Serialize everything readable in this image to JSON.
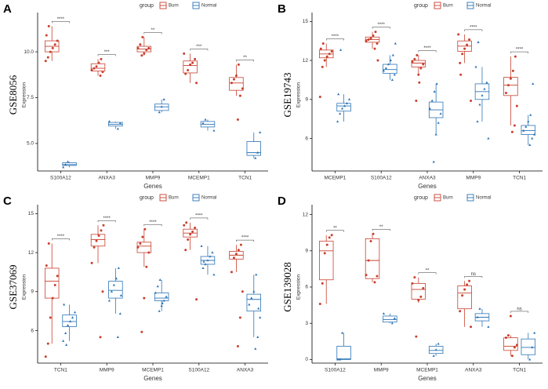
{
  "chart_data": [
    {
      "type": "box",
      "label": "A",
      "title": "GSE8056",
      "ylabel": "Expression",
      "xlabel": "Genes",
      "legend_title": "group",
      "categories": [
        "S100A12",
        "ANXA3",
        "MMP9",
        "MCEMP1",
        "TCN1"
      ],
      "annotations": [
        "****",
        "***",
        "**",
        "***",
        "**"
      ],
      "ylim": [
        3.5,
        11.8
      ],
      "yticks": [
        {
          "value": 5,
          "label": "5.0"
        },
        {
          "value": 7.5,
          "label": "7.5"
        },
        {
          "value": 10,
          "label": "10.0"
        }
      ],
      "series": [
        {
          "name": "Burn",
          "color": "#c8402f",
          "boxes": [
            [
              9.5,
              10.0,
              10.3,
              10.6,
              11.4
            ],
            [
              8.7,
              8.95,
              9.1,
              9.35,
              9.6
            ],
            [
              9.8,
              10.0,
              10.15,
              10.3,
              10.8
            ],
            [
              8.3,
              8.85,
              9.25,
              9.5,
              9.9
            ],
            [
              7.6,
              7.9,
              8.3,
              8.6,
              9.3
            ]
          ],
          "points": [
            [
              9.5,
              9.7,
              10.0,
              10.2,
              10.4,
              10.6,
              10.9,
              11.4
            ],
            [
              8.7,
              8.9,
              9.0,
              9.1,
              9.2,
              9.4,
              9.6
            ],
            [
              9.8,
              9.9,
              10.1,
              10.2,
              10.2,
              10.4,
              10.8
            ],
            [
              8.3,
              8.8,
              9.0,
              9.3,
              9.4,
              9.6,
              9.9
            ],
            [
              6.3,
              7.6,
              8.0,
              8.3,
              8.5,
              8.7,
              9.3
            ]
          ]
        },
        {
          "name": "Normal",
          "color": "#2e75b6",
          "boxes": [
            [
              3.7,
              3.8,
              3.85,
              3.95,
              4.0
            ],
            [
              5.8,
              5.95,
              6.05,
              6.15,
              6.2
            ],
            [
              6.7,
              6.8,
              7.0,
              7.15,
              7.4
            ],
            [
              5.7,
              5.9,
              6.05,
              6.2,
              6.3
            ],
            [
              4.2,
              4.35,
              4.5,
              5.1,
              5.6
            ]
          ],
          "points": [
            [
              3.7,
              3.85,
              4.0
            ],
            [
              5.8,
              6.1,
              6.2
            ],
            [
              6.7,
              7.0,
              7.4
            ],
            [
              5.7,
              6.1,
              6.3
            ],
            [
              4.2,
              4.5,
              5.6
            ]
          ]
        }
      ]
    },
    {
      "type": "box",
      "label": "B",
      "title": "GSE19743",
      "ylabel": "Expression",
      "xlabel": "Genes",
      "legend_title": "group",
      "categories": [
        "MCEMP1",
        "S100A12",
        "ANXA3",
        "MMP9",
        "TCN1"
      ],
      "annotations": [
        "****",
        "****",
        "****",
        "****",
        "****"
      ],
      "ylim": [
        3.5,
        15.2
      ],
      "yticks": [
        6,
        9,
        12,
        15
      ],
      "series": [
        {
          "name": "Burn",
          "color": "#c8402f",
          "boxes": [
            [
              11.5,
              12.2,
              12.5,
              12.8,
              13.3
            ],
            [
              12.9,
              13.4,
              13.6,
              13.8,
              14.2
            ],
            [
              10.9,
              11.5,
              11.8,
              12.0,
              12.4
            ],
            [
              11.8,
              12.7,
              13.1,
              13.5,
              14.0
            ],
            [
              7.0,
              9.3,
              10.1,
              10.7,
              12.3
            ]
          ],
          "points": [
            [
              9.2,
              11.5,
              12.0,
              12.3,
              12.5,
              12.7,
              12.9,
              13.3
            ],
            [
              12.9,
              13.3,
              13.5,
              13.6,
              13.7,
              13.9,
              14.2,
              12.0
            ],
            [
              8.9,
              10.9,
              11.4,
              11.7,
              11.9,
              12.1,
              12.4,
              10.3
            ],
            [
              8.9,
              11.8,
              12.5,
              12.9,
              13.2,
              13.6,
              14.0,
              10.9
            ],
            [
              6.5,
              7.0,
              8.5,
              9.5,
              10.1,
              10.6,
              11.2,
              12.3
            ]
          ]
        },
        {
          "name": "Normal",
          "color": "#2e75b6",
          "boxes": [
            [
              7.3,
              8.1,
              8.5,
              8.7,
              9.4
            ],
            [
              10.5,
              11.0,
              11.3,
              11.7,
              12.4
            ],
            [
              6.3,
              7.6,
              8.2,
              8.8,
              10.2
            ],
            [
              7.3,
              9.0,
              9.6,
              10.2,
              11.5
            ],
            [
              5.5,
              6.3,
              6.6,
              7.0,
              7.8
            ]
          ],
          "points": [
            [
              7.3,
              7.9,
              8.3,
              8.5,
              8.7,
              9.0,
              9.4,
              12.8
            ],
            [
              10.5,
              10.9,
              11.2,
              11.4,
              11.7,
              12.0,
              12.4,
              13.3
            ],
            [
              4.2,
              6.3,
              7.2,
              7.9,
              8.3,
              8.9,
              9.6,
              10.2
            ],
            [
              6.0,
              7.3,
              8.6,
              9.3,
              9.8,
              10.3,
              11.5,
              13.4
            ],
            [
              5.5,
              6.0,
              6.3,
              6.6,
              6.9,
              7.3,
              7.8,
              10.2
            ]
          ]
        }
      ]
    },
    {
      "type": "box",
      "label": "C",
      "title": "GSE37069",
      "ylabel": "Expression",
      "xlabel": "Genes",
      "legend_title": "group",
      "categories": [
        "TCN1",
        "MMP9",
        "MCEMP1",
        "S100A12",
        "ANXA3"
      ],
      "annotations": [
        "****",
        "****",
        "****",
        "****",
        "****"
      ],
      "ylim": [
        3.5,
        15.2
      ],
      "yticks": [
        6,
        9,
        12,
        15
      ],
      "series": [
        {
          "name": "Burn",
          "color": "#c8402f",
          "boxes": [
            [
              5.0,
              8.5,
              9.8,
              10.8,
              12.7
            ],
            [
              11.2,
              12.5,
              13.0,
              13.4,
              14.1
            ],
            [
              10.9,
              12.0,
              12.5,
              12.8,
              13.8
            ],
            [
              12.2,
              13.2,
              13.5,
              13.8,
              14.3
            ],
            [
              10.5,
              11.5,
              11.8,
              12.1,
              12.6
            ]
          ],
          "points": [
            [
              4.0,
              5.0,
              7.0,
              8.5,
              9.5,
              10.2,
              11.0,
              12.7
            ],
            [
              5.5,
              9.0,
              11.2,
              12.4,
              12.9,
              13.3,
              13.7,
              14.1
            ],
            [
              5.9,
              8.5,
              10.9,
              12.0,
              12.4,
              12.7,
              13.2,
              13.8
            ],
            [
              8.4,
              12.2,
              13.0,
              13.4,
              13.6,
              13.9,
              14.1,
              14.3
            ],
            [
              4.8,
              7.0,
              9.0,
              10.5,
              11.6,
              11.9,
              12.2,
              12.6
            ]
          ]
        },
        {
          "name": "Normal",
          "color": "#2e75b6",
          "boxes": [
            [
              5.2,
              6.3,
              6.7,
              7.2,
              8.0
            ],
            [
              7.3,
              8.5,
              9.1,
              9.8,
              10.8
            ],
            [
              7.5,
              8.3,
              8.5,
              8.9,
              9.9
            ],
            [
              10.3,
              11.1,
              11.4,
              11.7,
              12.5
            ],
            [
              5.5,
              7.5,
              8.4,
              8.8,
              10.3
            ]
          ],
          "points": [
            [
              5.2,
              5.8,
              6.4,
              6.7,
              7.0,
              7.4,
              8.0,
              4.9
            ],
            [
              5.5,
              7.3,
              8.3,
              9.0,
              9.5,
              10.0,
              10.8,
              8.7
            ],
            [
              7.5,
              7.9,
              8.3,
              8.6,
              8.9,
              9.4,
              9.9,
              8.1
            ],
            [
              10.3,
              10.8,
              11.1,
              11.4,
              11.7,
              12.0,
              12.5,
              11.3
            ],
            [
              4.6,
              5.5,
              7.0,
              8.0,
              8.5,
              9.0,
              10.3,
              7.7
            ]
          ]
        }
      ]
    },
    {
      "type": "box",
      "label": "D",
      "title": "GSE139028",
      "ylabel": "Expression",
      "xlabel": "Genes",
      "legend_title": "group",
      "categories": [
        "S100A12",
        "MMP9",
        "MCEMP1",
        "ANXA3",
        "TCN1"
      ],
      "annotations": [
        "**",
        "**",
        "**",
        "ns",
        "ns"
      ],
      "ylim": [
        -0.3,
        12.3
      ],
      "yticks": [
        0,
        3,
        6,
        9,
        12
      ],
      "series": [
        {
          "name": "Burn",
          "color": "#c8402f",
          "boxes": [
            [
              4.6,
              6.6,
              9.0,
              9.8,
              10.3
            ],
            [
              6.4,
              6.7,
              8.2,
              10.0,
              10.4
            ],
            [
              4.7,
              5.0,
              5.8,
              6.3,
              6.8
            ],
            [
              2.7,
              4.2,
              5.5,
              6.1,
              6.5
            ],
            [
              0.3,
              0.75,
              1.1,
              1.8,
              2.0
            ]
          ],
          "points": [
            [
              4.6,
              6.3,
              8.8,
              9.5,
              10.1,
              10.3
            ],
            [
              6.4,
              6.9,
              7.0,
              8.2,
              9.8,
              10.4
            ],
            [
              1.9,
              4.9,
              5.2,
              5.9,
              6.3,
              6.8
            ],
            [
              2.7,
              4.0,
              5.3,
              5.8,
              6.2,
              6.5
            ],
            [
              0.3,
              1.0,
              1.2,
              1.8,
              2.0,
              3.6
            ]
          ]
        },
        {
          "name": "Normal",
          "color": "#2e75b6",
          "boxes": [
            [
              0,
              0,
              0.05,
              1.1,
              2.2
            ],
            [
              3.0,
              3.1,
              3.3,
              3.6,
              3.8
            ],
            [
              0.3,
              0.5,
              0.75,
              1.1,
              1.3
            ],
            [
              2.7,
              3.2,
              3.5,
              3.8,
              4.2
            ],
            [
              0.0,
              0.4,
              1.0,
              1.7,
              2.2
            ]
          ],
          "points": [
            [
              0,
              0,
              2.2
            ],
            [
              3.0,
              3.4,
              3.8
            ],
            [
              0.3,
              0.8,
              1.3
            ],
            [
              2.7,
              3.5,
              4.2
            ],
            [
              0,
              1.0,
              2.2
            ]
          ]
        }
      ]
    }
  ]
}
